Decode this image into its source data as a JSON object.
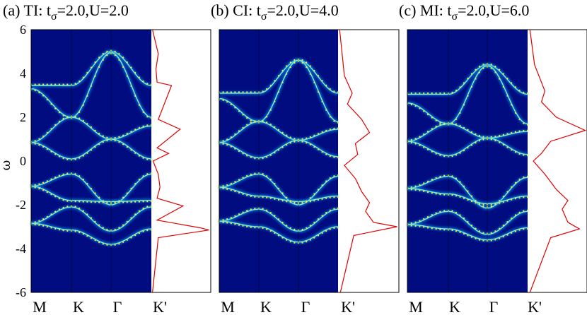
{
  "y_axis_label": "ω",
  "y_ticks": [
    "6",
    "4",
    "2",
    "0",
    "-2",
    "-4",
    "-6"
  ],
  "k_path_labels": [
    "M",
    "K",
    "Γ",
    "K'"
  ],
  "chart_data": [
    {
      "type": "heatmap",
      "panel": "a",
      "title": "(a) TI: t",
      "title_sub": "σ",
      "title_rest": "=2.0,U=2.0",
      "ylabel": "ω",
      "ylim": [
        -6,
        6
      ],
      "x_path": [
        "M",
        "K",
        "Γ",
        "K'"
      ],
      "colormap": "jet",
      "bands": [
        {
          "k": [
            0,
            1,
            2,
            3
          ],
          "w": [
            3.45,
            3.45,
            5.0,
            3.45
          ]
        },
        {
          "k": [
            0,
            1,
            2,
            3
          ],
          "w": [
            3.3,
            2.0,
            4.95,
            2.0
          ]
        },
        {
          "k": [
            0,
            1,
            2,
            3
          ],
          "w": [
            0.85,
            2.0,
            1.0,
            1.6
          ]
        },
        {
          "k": [
            0,
            1,
            2,
            3
          ],
          "w": [
            0.85,
            0.1,
            1.0,
            0.1
          ]
        },
        {
          "k": [
            0,
            1,
            2,
            3
          ],
          "w": [
            -1.15,
            -0.6,
            -2.0,
            -0.6
          ]
        },
        {
          "k": [
            0,
            1,
            2,
            3
          ],
          "w": [
            -1.15,
            -1.8,
            -1.85,
            -1.8
          ]
        },
        {
          "k": [
            0,
            1,
            2,
            3
          ],
          "w": [
            -2.85,
            -2.1,
            -3.2,
            -2.1
          ]
        },
        {
          "k": [
            0,
            1,
            2,
            3
          ],
          "w": [
            -2.85,
            -3.15,
            -3.8,
            -3.1
          ]
        }
      ],
      "dos": {
        "w": [
          -6,
          -3.5,
          -3.15,
          -3.05,
          -2.7,
          -2.05,
          -1.7,
          -1.2,
          -0.6,
          0,
          0.35,
          0.6,
          1.45,
          1.9,
          3.45,
          3.6,
          4.2,
          4.9,
          6
        ],
        "value": [
          0.02,
          0.12,
          1.0,
          0.85,
          0.1,
          0.55,
          0.1,
          0.15,
          0.12,
          0.03,
          0.3,
          0.1,
          0.5,
          0.12,
          0.35,
          0.1,
          0.08,
          0.12,
          0.02
        ]
      }
    },
    {
      "type": "heatmap",
      "panel": "b",
      "title": "(b) CI: t",
      "title_sub": "σ",
      "title_rest": "=2.0,U=4.0",
      "ylabel": "ω",
      "ylim": [
        -6,
        6
      ],
      "x_path": [
        "M",
        "K",
        "Γ",
        "K'"
      ],
      "colormap": "jet",
      "bands": [
        {
          "k": [
            0,
            1,
            2,
            3
          ],
          "w": [
            3.1,
            3.1,
            4.6,
            3.1
          ]
        },
        {
          "k": [
            0,
            1,
            2,
            3
          ],
          "w": [
            2.85,
            1.8,
            4.6,
            1.8
          ]
        },
        {
          "k": [
            0,
            1,
            2,
            3
          ],
          "w": [
            0.85,
            1.8,
            0.95,
            1.45
          ]
        },
        {
          "k": [
            0,
            1,
            2,
            3
          ],
          "w": [
            0.85,
            0.15,
            0.95,
            0.2
          ]
        },
        {
          "k": [
            0,
            1,
            2,
            3
          ],
          "w": [
            -1.2,
            -0.6,
            -2.0,
            -0.7
          ]
        },
        {
          "k": [
            0,
            1,
            2,
            3
          ],
          "w": [
            -1.2,
            -1.6,
            -1.85,
            -1.6
          ]
        },
        {
          "k": [
            0,
            1,
            2,
            3
          ],
          "w": [
            -2.75,
            -2.2,
            -3.2,
            -2.2
          ]
        },
        {
          "k": [
            0,
            1,
            2,
            3
          ],
          "w": [
            -2.75,
            -3.0,
            -3.7,
            -3.0
          ]
        }
      ],
      "dos": {
        "w": [
          -6,
          -3.4,
          -3.0,
          -2.8,
          -2.3,
          -1.9,
          -1.4,
          -0.8,
          -0.2,
          0.3,
          0.8,
          1.3,
          1.9,
          2.6,
          3.1,
          3.9,
          4.6,
          6
        ],
        "value": [
          0.03,
          0.2,
          0.75,
          0.45,
          0.35,
          0.4,
          0.3,
          0.22,
          0.08,
          0.25,
          0.22,
          0.4,
          0.3,
          0.12,
          0.18,
          0.08,
          0.06,
          0.02
        ]
      }
    },
    {
      "type": "heatmap",
      "panel": "c",
      "title": "(c) MI: t",
      "title_sub": "σ",
      "title_rest": "=2.0,U=6.0",
      "ylabel": "ω",
      "ylim": [
        -6,
        6
      ],
      "x_path": [
        "M",
        "K",
        "Γ",
        "K'"
      ],
      "colormap": "jet",
      "bands": [
        {
          "k": [
            0,
            1,
            2,
            3
          ],
          "w": [
            3.05,
            3.05,
            4.4,
            3.05
          ]
        },
        {
          "k": [
            0,
            1,
            2,
            3
          ],
          "w": [
            2.65,
            1.7,
            4.35,
            1.7
          ]
        },
        {
          "k": [
            0,
            1,
            2,
            3
          ],
          "w": [
            0.9,
            1.7,
            1.05,
            1.35
          ]
        },
        {
          "k": [
            0,
            1,
            2,
            3
          ],
          "w": [
            0.9,
            0.25,
            1.05,
            0.3
          ]
        },
        {
          "k": [
            0,
            1,
            2,
            3
          ],
          "w": [
            -1.25,
            -0.7,
            -2.15,
            -0.75
          ]
        },
        {
          "k": [
            0,
            1,
            2,
            3
          ],
          "w": [
            -1.25,
            -1.5,
            -1.95,
            -1.6
          ]
        },
        {
          "k": [
            0,
            1,
            2,
            3
          ],
          "w": [
            -2.9,
            -2.3,
            -3.35,
            -2.3
          ]
        },
        {
          "k": [
            0,
            1,
            2,
            3
          ],
          "w": [
            -2.9,
            -3.1,
            -3.6,
            -3.05
          ]
        }
      ],
      "dos": {
        "w": [
          -6,
          -3.5,
          -3.1,
          -2.8,
          -2.2,
          -1.8,
          -1.3,
          -0.6,
          0,
          0.35,
          0.9,
          1.4,
          2.0,
          2.7,
          3.2,
          4.4,
          6
        ],
        "value": [
          0.02,
          0.2,
          0.45,
          0.35,
          0.3,
          0.35,
          0.25,
          0.15,
          0.05,
          0.12,
          0.2,
          0.5,
          0.25,
          0.12,
          0.15,
          0.06,
          0.02
        ]
      }
    }
  ]
}
